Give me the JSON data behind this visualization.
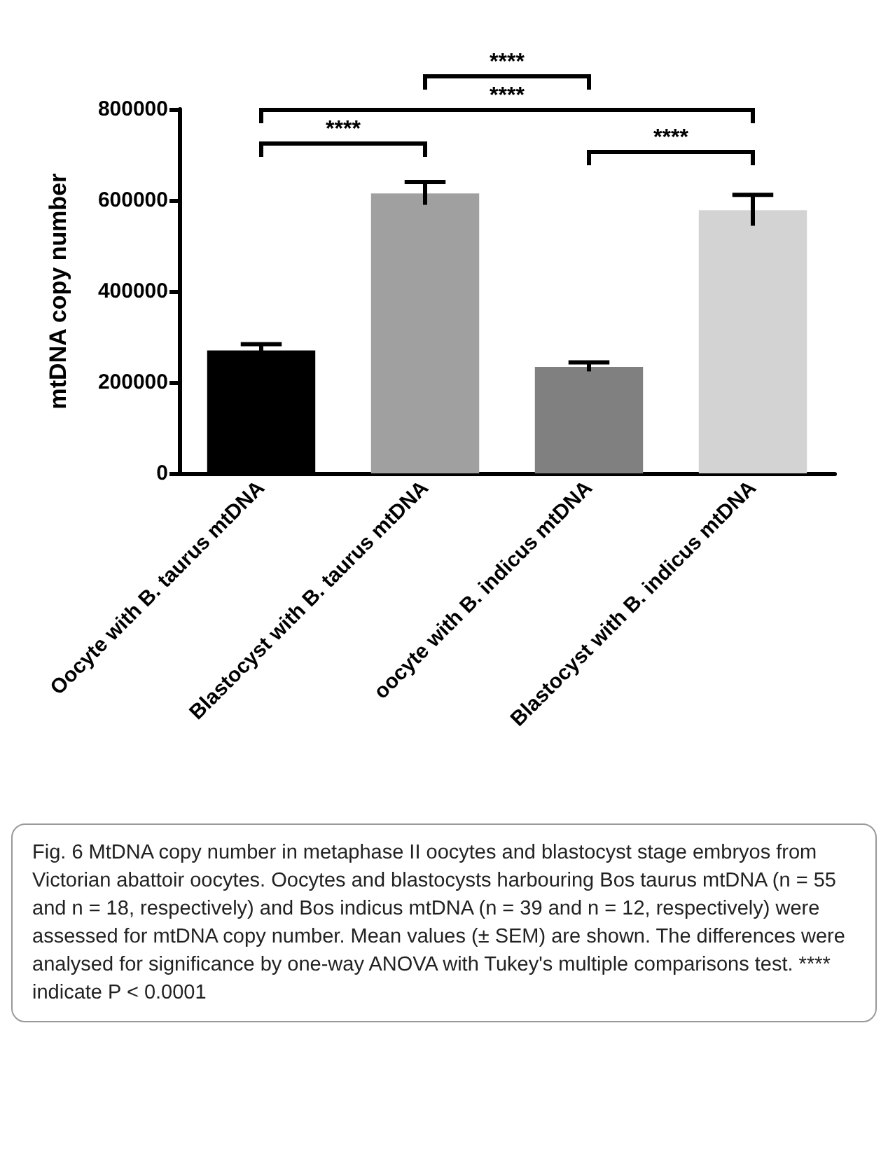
{
  "chart_data": {
    "type": "bar",
    "ylabel": "mtDNA copy number",
    "categories": [
      "Oocyte with B. taurus mtDNA",
      "Blastocyst with B. taurus mtDNA",
      "oocyte with B. indicus mtDNA",
      "Blastocyst with B. indicus mtDNA"
    ],
    "values": [
      270000,
      615000,
      234000,
      578000
    ],
    "errors": [
      14000,
      25000,
      10000,
      34000
    ],
    "colors": [
      "#000000",
      "#a0a0a0",
      "#808080",
      "#d3d3d3"
    ],
    "ylim": [
      0,
      800000
    ],
    "yticks": [
      0,
      200000,
      400000,
      600000,
      800000
    ],
    "grid": false,
    "annotations": [
      "****",
      "****",
      "****",
      "****",
      "Fig. 6 MtDNA copy number in metaphase II oocytes and blastocyst stage embryos from Victorian abattoir oocytes. Oocytes and blastocysts harbouring Bos taurus mtDNA (n = 55 and n = 18, respectively) and Bos indicus mtDNA (n = 39 and n = 12, respectively) were assessed for mtDNA copy number. Mean values (± SEM) are shown. The differences were analysed for significance by one-way ANOVA with Tukey's multiple comparisons test. **** indicate P < 0.0001"
    ]
  }
}
